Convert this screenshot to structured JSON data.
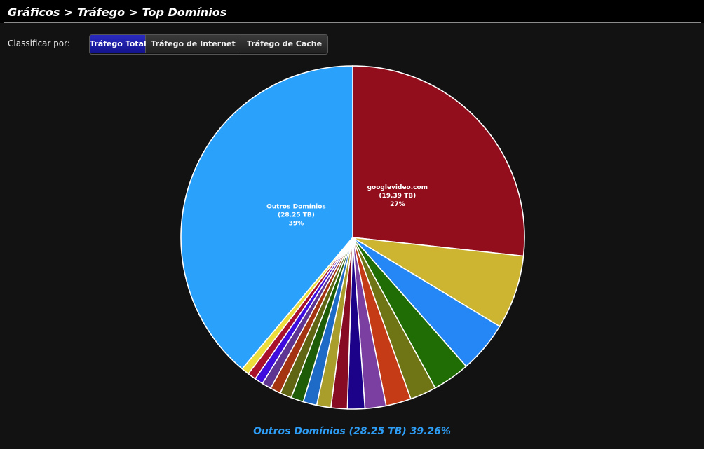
{
  "header": {
    "title": "Gráficos > Tráfego > Top Domínios"
  },
  "sort": {
    "label": "Classificar por:",
    "buttons": [
      {
        "label": "Tráfego Total",
        "active": true
      },
      {
        "label": "Tráfego de Internet",
        "active": false
      },
      {
        "label": "Tráfego de Cache",
        "active": false
      }
    ]
  },
  "footer": {
    "caption": "Outros Domínios (28.25 TB) 39.26%"
  },
  "chart_data": {
    "type": "pie",
    "slices": [
      {
        "name": "googlevideo.com",
        "value_label": "(19.39 TB)",
        "pct_label": "27%",
        "share": 27.0,
        "color": "#920e1c"
      },
      {
        "name": "",
        "value_label": "",
        "pct_label": "",
        "share": 7.0,
        "color": "#cdb531"
      },
      {
        "name": "",
        "value_label": "",
        "pct_label": "",
        "share": 4.9,
        "color": "#2487f5"
      },
      {
        "name": "",
        "value_label": "",
        "pct_label": "",
        "share": 3.55,
        "color": "#206d05"
      },
      {
        "name": "",
        "value_label": "",
        "pct_label": "",
        "share": 2.5,
        "color": "#6f7414"
      },
      {
        "name": "",
        "value_label": "",
        "pct_label": "",
        "share": 2.4,
        "color": "#c53b16"
      },
      {
        "name": "",
        "value_label": "",
        "pct_label": "",
        "share": 2.0,
        "color": "#7a3fa0"
      },
      {
        "name": "",
        "value_label": "",
        "pct_label": "",
        "share": 1.65,
        "color": "#1b0288"
      },
      {
        "name": "",
        "value_label": "",
        "pct_label": "",
        "share": 1.55,
        "color": "#870b22"
      },
      {
        "name": "",
        "value_label": "",
        "pct_label": "",
        "share": 1.35,
        "color": "#a99d2c"
      },
      {
        "name": "",
        "value_label": "",
        "pct_label": "",
        "share": 1.3,
        "color": "#1e6bc7"
      },
      {
        "name": "",
        "value_label": "",
        "pct_label": "",
        "share": 1.2,
        "color": "#1e5c08"
      },
      {
        "name": "",
        "value_label": "",
        "pct_label": "",
        "share": 1.1,
        "color": "#5f6512"
      },
      {
        "name": "",
        "value_label": "",
        "pct_label": "",
        "share": 1.0,
        "color": "#a43312"
      },
      {
        "name": "",
        "value_label": "",
        "pct_label": "",
        "share": 0.9,
        "color": "#5e3590"
      },
      {
        "name": "",
        "value_label": "",
        "pct_label": "",
        "share": 0.8,
        "color": "#3e0ddd"
      },
      {
        "name": "",
        "value_label": "",
        "pct_label": "",
        "share": 0.8,
        "color": "#a8102b"
      },
      {
        "name": "",
        "value_label": "",
        "pct_label": "",
        "share": 0.74,
        "color": "#ecdc3c"
      },
      {
        "name": "Outros Domínios",
        "value_label": "(28.25 TB)",
        "pct_label": "39%",
        "share": 39.26,
        "color": "#2aa1fb"
      }
    ]
  }
}
